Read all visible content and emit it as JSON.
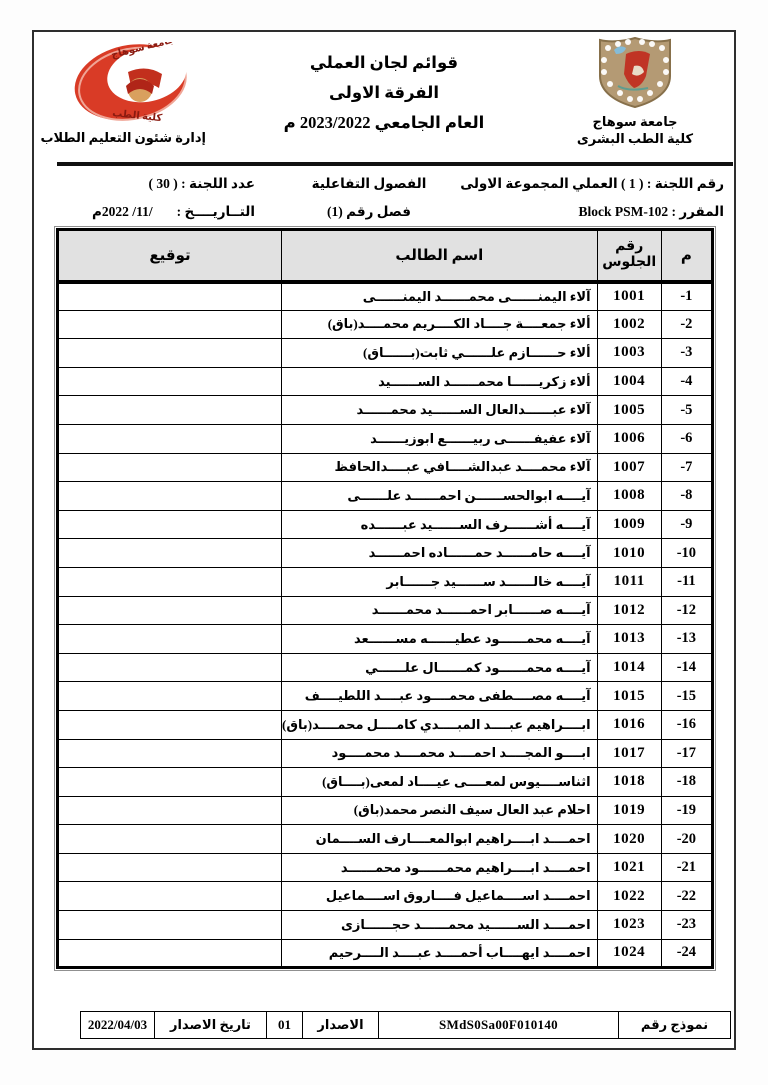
{
  "colors": {
    "accent_red": "#d93b26",
    "shield_tan": "#b49a74",
    "sky_blue": "#85bcd8",
    "header_gray": "#e1e1e1"
  },
  "header": {
    "left_logo_caption": "إدارة شئون التعليم الطلاب",
    "left_logo_text_top": "جامعة سوهاج",
    "left_logo_text_bottom": "كلية الطب",
    "right_logo_caption_line1": "جامعة سوهاج",
    "right_logo_caption_line2": "كلية الطب البشرى",
    "title_line1": "قوائم لجان العملي",
    "title_line2": "الفرقة الاولى",
    "title_line3": "العام الجامعي 2023/2022 م"
  },
  "info": {
    "committee_line": "رقم اللجنة : ( 1 ) العملي المجموعة الاولى",
    "course_line": "المقرر : Block PSM-102",
    "classes_line1": "الفصول التفاعلية",
    "classes_line2": "فصل رقم (1)",
    "count_line": "عدد اللجنة : ( 30 )",
    "date_label": "التــاريــــخ :",
    "date_value": "/11/ 2022م"
  },
  "table": {
    "headers": {
      "index": "م",
      "seat_line1": "رقم",
      "seat_line2": "الجلوس",
      "name": "اسم الطالب",
      "signature": "توقيع"
    },
    "rows": [
      {
        "index": "-1",
        "seat": "1001",
        "name": "آلاء اليمنــــــى محمــــــد اليمنــــــى",
        "signature": ""
      },
      {
        "index": "-2",
        "seat": "1002",
        "name": "ألاء جمعــــة جــــاد الكــــريم محمــــد(باق)",
        "signature": ""
      },
      {
        "index": "-3",
        "seat": "1003",
        "name": "ألاء حــــــازم علــــــي ثابت(بــــــاق)",
        "signature": ""
      },
      {
        "index": "-4",
        "seat": "1004",
        "name": "ألاء زكريــــــا محمــــــد الســــــيد",
        "signature": ""
      },
      {
        "index": "-5",
        "seat": "1005",
        "name": "آلاء عبــــــدالعال الســــــيد محمــــــد",
        "signature": ""
      },
      {
        "index": "-6",
        "seat": "1006",
        "name": "آلاء عفيفــــــى ربيــــــع ابوزيــــــد",
        "signature": ""
      },
      {
        "index": "-7",
        "seat": "1007",
        "name": "آلاء محمــــد عبدالشــــافي عبــــدالحافظ",
        "signature": ""
      },
      {
        "index": "-8",
        "seat": "1008",
        "name": "آيــــه ابوالحســــــن احمــــــد علــــــى",
        "signature": ""
      },
      {
        "index": "-9",
        "seat": "1009",
        "name": "آيــــه أشــــــرف الســــــيد عبــــــده",
        "signature": ""
      },
      {
        "index": "-10",
        "seat": "1010",
        "name": "آيــــه حامــــــد حمــــــاده احمــــــد",
        "signature": ""
      },
      {
        "index": "-11",
        "seat": "1011",
        "name": "آيــــه خالــــــد ســــــيد جــــــابر",
        "signature": ""
      },
      {
        "index": "-12",
        "seat": "1012",
        "name": "آيــــه صــــــابر احمــــــد محمــــــد",
        "signature": ""
      },
      {
        "index": "-13",
        "seat": "1013",
        "name": "آيــــه محمــــــود عطيــــــه مســــــعد",
        "signature": ""
      },
      {
        "index": "-14",
        "seat": "1014",
        "name": "آيــــه محمــــــود كمــــــال علــــــي",
        "signature": ""
      },
      {
        "index": "-15",
        "seat": "1015",
        "name": "آيــــه مصــــطفى محمــــود عبــــد اللطيــــف",
        "signature": ""
      },
      {
        "index": "-16",
        "seat": "1016",
        "name": "ابــــراهيم عبــــد المبــــدي كامــــل محمــــد(باق)",
        "signature": ""
      },
      {
        "index": "-17",
        "seat": "1017",
        "name": "ابــــو المجــــد احمــــد محمــــد محمــــود",
        "signature": ""
      },
      {
        "index": "-18",
        "seat": "1018",
        "name": "اثناســــيوس لمعــــى عيــــاد لمعى(بــــاق)",
        "signature": ""
      },
      {
        "index": "-19",
        "seat": "1019",
        "name": "احلام عبد العال سيف النصر محمد(باق)",
        "signature": ""
      },
      {
        "index": "-20",
        "seat": "1020",
        "name": "احمــــد ابــــراهيم ابوالمعــــارف الســــمان",
        "signature": ""
      },
      {
        "index": "-21",
        "seat": "1021",
        "name": "احمــــد ابــــراهيم محمــــــود محمــــــد",
        "signature": ""
      },
      {
        "index": "-22",
        "seat": "1022",
        "name": "احمــــد اســــماعيل فــــاروق اســــماعيل",
        "signature": ""
      },
      {
        "index": "-23",
        "seat": "1023",
        "name": "احمــــد الســــــيد محمــــــد حجــــــازى",
        "signature": ""
      },
      {
        "index": "-24",
        "seat": "1024",
        "name": "احمــــد ايهــــاب أحمــــد عبــــد الــــرحيم",
        "signature": ""
      }
    ]
  },
  "footer": {
    "form_label": "نموذج رقم",
    "form_code": "SMdS0Sa00F010140",
    "issue_label": "الاصدار",
    "issue_value": "01",
    "issue_date_label": "تاريخ الاصدار",
    "issue_date_value": "2022/04/03"
  }
}
